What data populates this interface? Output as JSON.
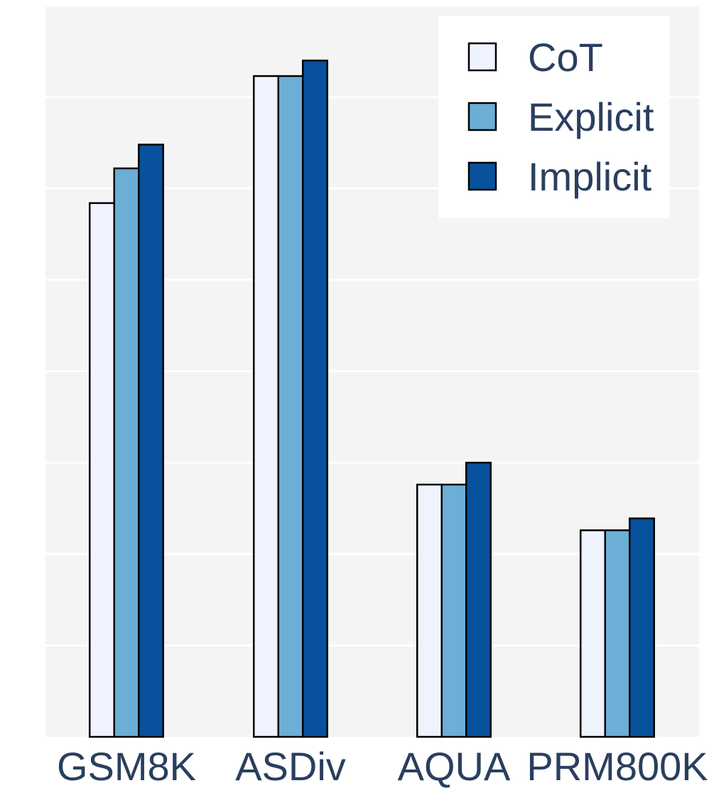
{
  "chart_data": {
    "type": "bar",
    "categories": [
      "GSM8K",
      "ASDiv",
      "AQUA",
      "PRM800K"
    ],
    "series": [
      {
        "name": "CoT",
        "values": [
          58.4,
          72.3,
          27.6,
          22.6
        ]
      },
      {
        "name": "Explicit",
        "values": [
          62.2,
          72.3,
          27.6,
          22.6
        ]
      },
      {
        "name": "Implicit",
        "values": [
          64.8,
          74.0,
          30.0,
          23.9
        ]
      }
    ],
    "title": "",
    "xlabel": "",
    "ylabel": "",
    "ylim": [
      0,
      80
    ],
    "grid": true,
    "legend_position": "top-right",
    "colors": {
      "series": [
        "#eff3fe",
        "#6baed6",
        "#08519c"
      ],
      "plot_background": "#f4f4f4",
      "gridline": "#ffffff",
      "legend_background": "#ffffff",
      "text": "#2a3f5f",
      "bar_outline": "#000000"
    }
  }
}
